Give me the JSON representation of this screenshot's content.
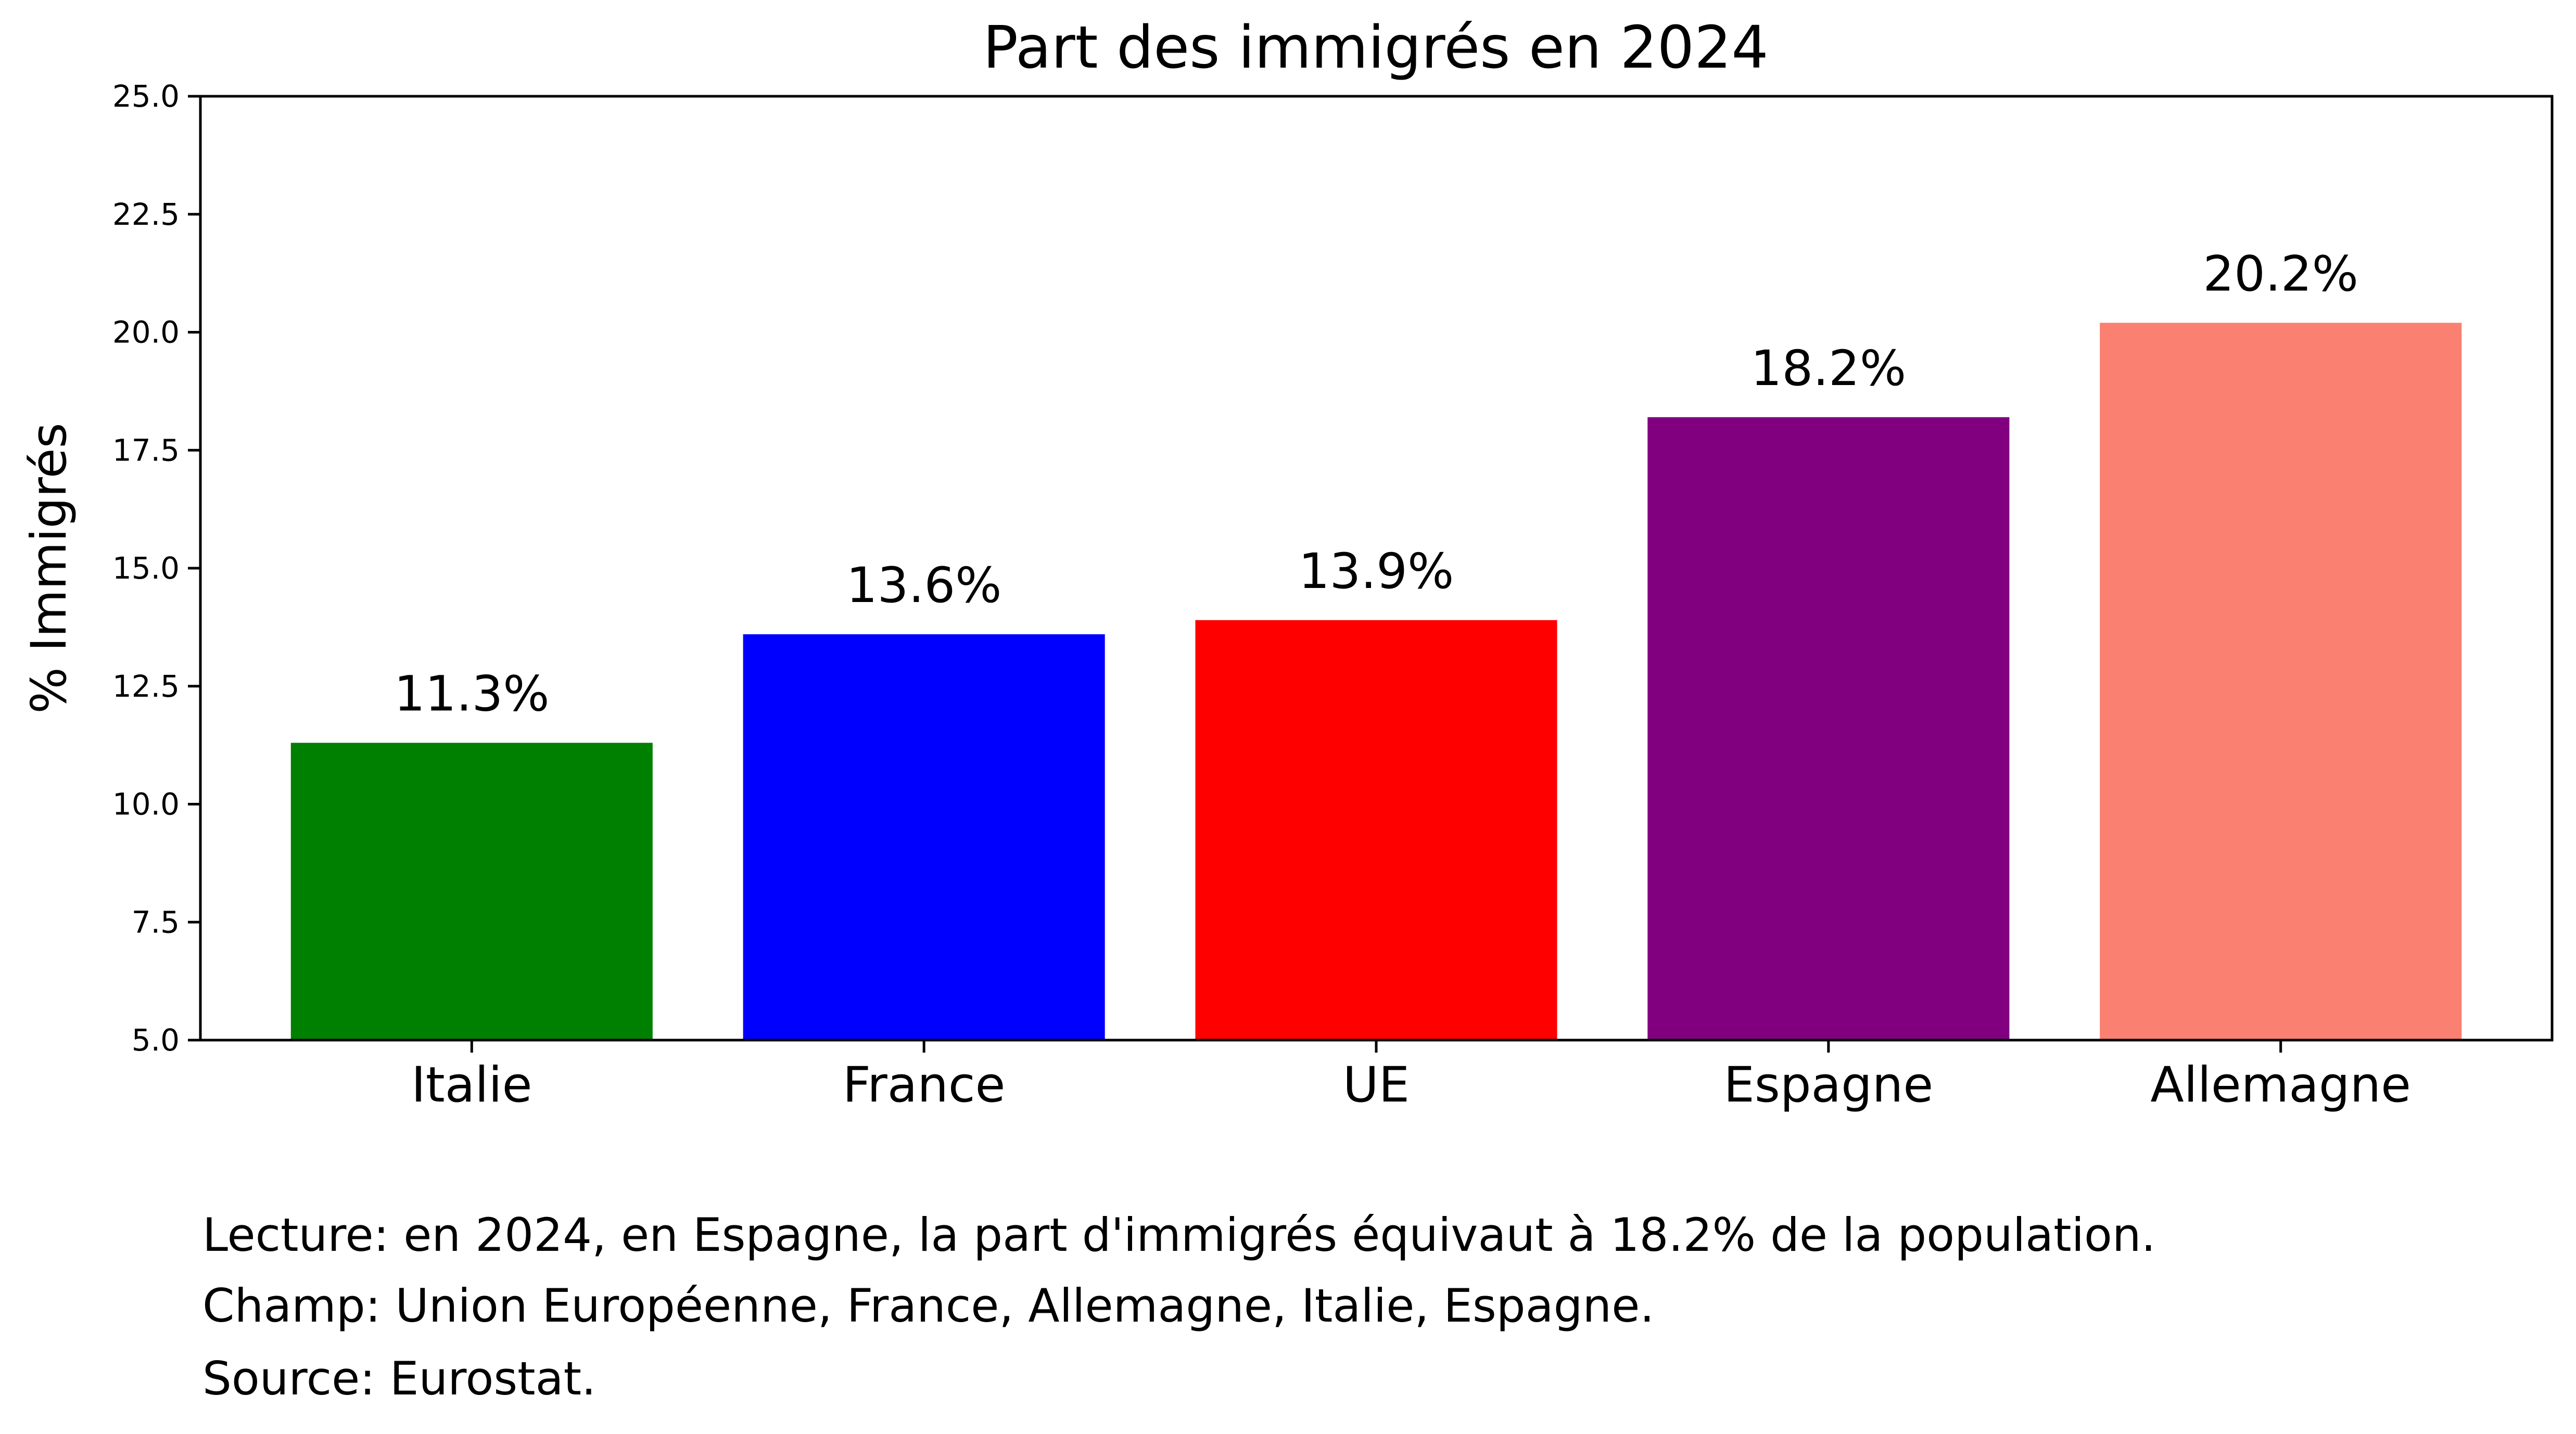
{
  "chart_data": {
    "type": "bar",
    "title": "Part des immigrés en 2024",
    "xlabel": "",
    "ylabel": "% Immigrés",
    "categories": [
      "Italie",
      "France",
      "UE",
      "Espagne",
      "Allemagne"
    ],
    "values": [
      11.3,
      13.6,
      13.9,
      18.2,
      20.2
    ],
    "value_labels": [
      "11.3%",
      "13.6%",
      "13.9%",
      "18.2%",
      "20.2%"
    ],
    "colors": [
      "#008000",
      "#0000ff",
      "#ff0000",
      "#800080",
      "#fa8072"
    ],
    "ylim": [
      5.0,
      25.0
    ],
    "yticks": [
      5.0,
      7.5,
      10.0,
      12.5,
      15.0,
      17.5,
      20.0,
      22.5,
      25.0
    ],
    "ytick_labels": [
      "5.0",
      "7.5",
      "10.0",
      "12.5",
      "15.0",
      "17.5",
      "20.0",
      "22.5",
      "25.0"
    ],
    "grid": false,
    "legend": "none"
  },
  "notes": {
    "lecture": "Lecture: en 2024, en Espagne, la part d'immigrés équivaut à 18.2% de la population.",
    "champ": "Champ: Union Européenne, France, Allemagne, Italie, Espagne.",
    "source": "Source: Eurostat."
  }
}
